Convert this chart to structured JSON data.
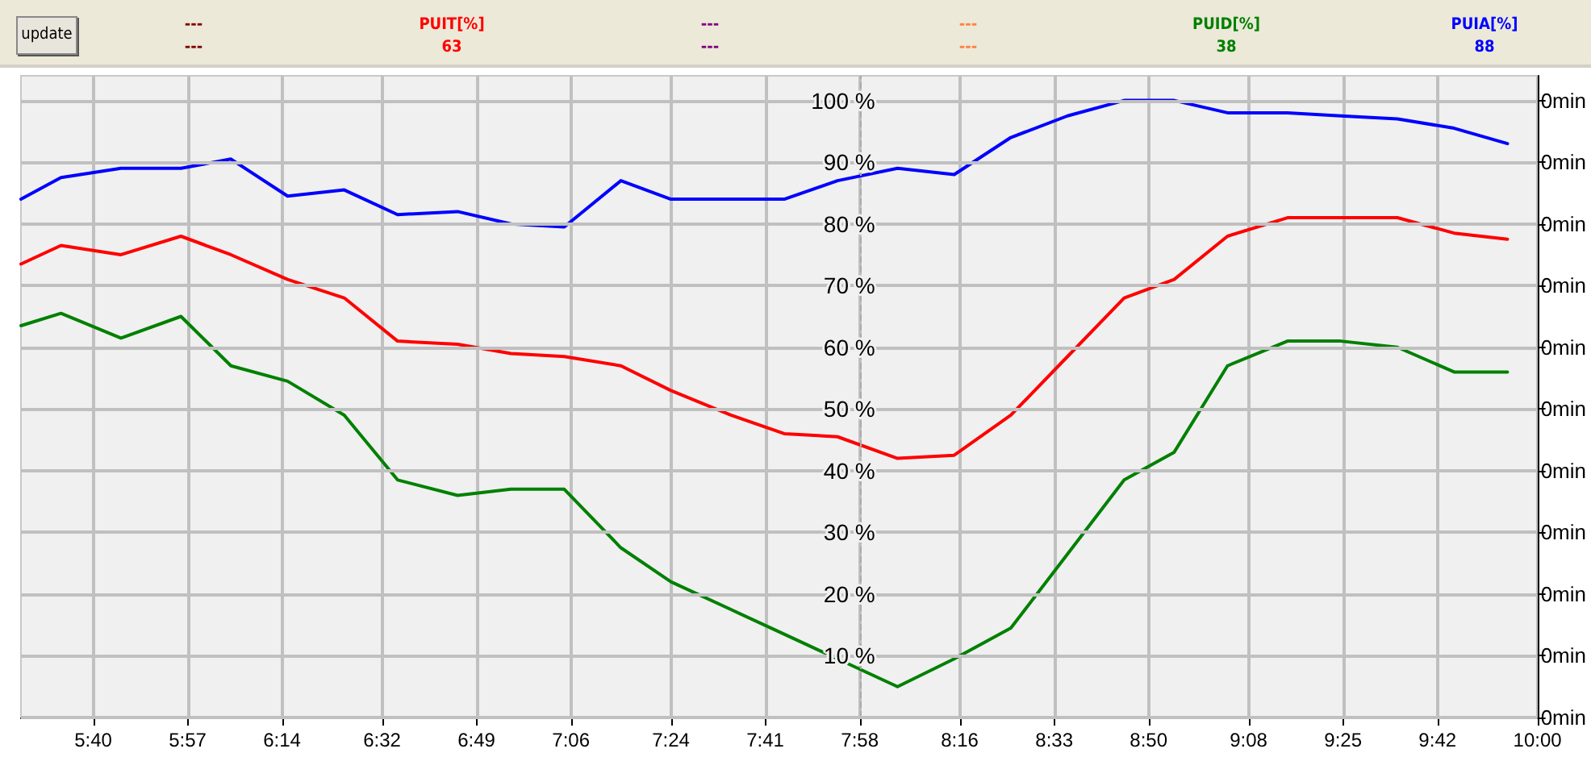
{
  "chart_data": {
    "type": "line",
    "x": [
      5.45,
      5.57,
      5.75,
      5.93,
      6.08,
      6.25,
      6.42,
      6.58,
      6.76,
      6.92,
      7.08,
      7.25,
      7.4,
      7.58,
      7.74,
      7.9,
      8.08,
      8.25,
      8.42,
      8.59,
      8.76,
      8.91,
      9.07,
      9.25,
      9.41,
      9.58,
      9.75,
      9.91
    ],
    "series": [
      {
        "name": "---",
        "color": "#800000",
        "values": [
          null,
          null,
          null,
          null,
          null,
          null,
          null,
          null,
          null,
          null,
          null,
          null,
          null,
          null,
          null,
          null,
          null,
          null,
          null,
          null,
          null,
          null,
          null,
          null,
          null,
          null,
          null,
          null
        ]
      },
      {
        "name": "PUIT[%]",
        "color": "#ff0000",
        "values": [
          73.5,
          76.5,
          75,
          78,
          75,
          71,
          68,
          61,
          60.5,
          59,
          58.5,
          57,
          53,
          49,
          46,
          45.5,
          42,
          42.5,
          49,
          58.5,
          68,
          71,
          78,
          81,
          81,
          81,
          78.5,
          77.5
        ]
      },
      {
        "name": "---",
        "color": "#800080",
        "values": [
          null,
          null,
          null,
          null,
          null,
          null,
          null,
          null,
          null,
          null,
          null,
          null,
          null,
          null,
          null,
          null,
          null,
          null,
          null,
          null,
          null,
          null,
          null,
          null,
          null,
          null,
          null,
          null
        ]
      },
      {
        "name": "---",
        "color": "#ff8040",
        "values": [
          null,
          null,
          null,
          null,
          null,
          null,
          null,
          null,
          null,
          null,
          null,
          null,
          null,
          null,
          null,
          null,
          null,
          null,
          null,
          null,
          null,
          null,
          null,
          null,
          null,
          null,
          null,
          null
        ]
      },
      {
        "name": "PUID[%]",
        "color": "#008000",
        "values": [
          63.5,
          65.5,
          61.5,
          65,
          57,
          54.5,
          49,
          38.5,
          36,
          37,
          37,
          27.5,
          22,
          17.5,
          13.5,
          9.5,
          5,
          9.5,
          14.5,
          26.5,
          38.5,
          43,
          57,
          61,
          61,
          60,
          56,
          56
        ]
      },
      {
        "name": "PUIA[%]",
        "color": "#0000ff",
        "values": [
          84,
          87.5,
          89,
          89,
          90.5,
          84.5,
          85.5,
          81.5,
          82,
          80,
          79.5,
          87,
          84,
          84,
          84,
          87,
          89,
          88,
          94,
          97.5,
          100,
          100,
          98,
          98,
          97.5,
          97,
          95.5,
          93
        ]
      }
    ],
    "annotations": [
      "update",
      "---",
      "63",
      "---",
      "---",
      "38",
      "88",
      "0min",
      "0min",
      "0min",
      "0min",
      "0min",
      "0min",
      "0min",
      "0min",
      "0min",
      "0min",
      "0min"
    ],
    "xlim": [
      5.45,
      10
    ],
    "xticks": [
      {
        "value": 5.6667,
        "label": "5:40"
      },
      {
        "value": 5.95,
        "label": "5:57"
      },
      {
        "value": 6.2333,
        "label": "6:14"
      },
      {
        "value": 6.5333,
        "label": "6:32"
      },
      {
        "value": 6.8167,
        "label": "6:49"
      },
      {
        "value": 7.1,
        "label": "7:06"
      },
      {
        "value": 7.4,
        "label": "7:24"
      },
      {
        "value": 7.6833,
        "label": "7:41"
      },
      {
        "value": 7.9667,
        "label": "7:58"
      },
      {
        "value": 8.2667,
        "label": "8:16"
      },
      {
        "value": 8.55,
        "label": "8:33"
      },
      {
        "value": 8.8333,
        "label": "8:50"
      },
      {
        "value": 9.1333,
        "label": "9:08"
      },
      {
        "value": 9.4167,
        "label": "9:25"
      },
      {
        "value": 9.7,
        "label": "9:42"
      },
      {
        "value": 10,
        "label": "10:00"
      }
    ],
    "ylim": [
      0,
      104
    ],
    "yticks": [
      {
        "value": 0,
        "label": null
      },
      {
        "value": 10,
        "label": "10 %"
      },
      {
        "value": 20,
        "label": "20 %"
      },
      {
        "value": 30,
        "label": "30 %"
      },
      {
        "value": 40,
        "label": "40 %"
      },
      {
        "value": 50,
        "label": "50 %"
      },
      {
        "value": 60,
        "label": "60 %"
      },
      {
        "value": 70,
        "label": "70 %"
      },
      {
        "value": 80,
        "label": "80 %"
      },
      {
        "value": 90,
        "label": "90 %"
      },
      {
        "value": 100,
        "label": "100 %"
      }
    ],
    "ref_lines": [
      {
        "axis": "x",
        "value": 7.9667,
        "color": "#aaaaaa",
        "line_style": "dashed"
      }
    ],
    "grid": true,
    "legend": "top",
    "marker": "none",
    "line_style": "solid"
  }
}
